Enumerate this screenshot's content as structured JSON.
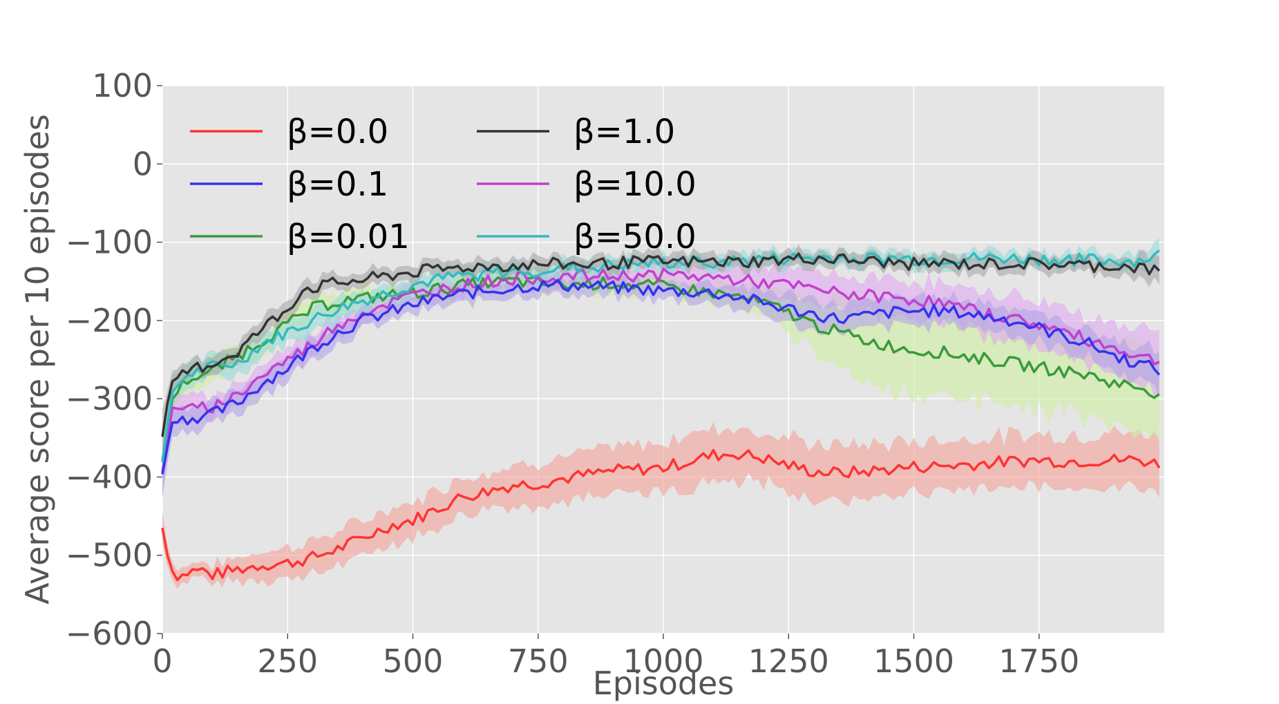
{
  "chart_data": {
    "type": "line",
    "title": "",
    "xlabel": "Episodes",
    "ylabel": "Average score per 10 episodes",
    "xlim": [
      0,
      2000
    ],
    "ylim": [
      -600,
      100
    ],
    "xticks": [
      0,
      250,
      500,
      750,
      1000,
      1250,
      1500,
      1750
    ],
    "yticks": [
      100,
      0,
      -100,
      -200,
      -300,
      -400,
      -500,
      -600
    ],
    "grid": true,
    "legend": {
      "placement": "top-left",
      "columns": 2
    },
    "series": [
      {
        "name": "β=0.0",
        "color": "#ff3333",
        "band_color": "#f4a29a",
        "x": [
          0,
          15,
          30,
          50,
          75,
          100,
          150,
          200,
          250,
          300,
          350,
          400,
          450,
          500,
          550,
          600,
          650,
          700,
          750,
          800,
          850,
          900,
          950,
          1000,
          1050,
          1100,
          1150,
          1200,
          1250,
          1300,
          1350,
          1400,
          1450,
          1500,
          1550,
          1600,
          1650,
          1700,
          1750,
          1800,
          1850,
          1900,
          1950,
          2000
        ],
        "y": [
          -465,
          -515,
          -530,
          -522,
          -518,
          -525,
          -518,
          -512,
          -510,
          -503,
          -492,
          -478,
          -463,
          -455,
          -440,
          -425,
          -418,
          -410,
          -408,
          -402,
          -397,
          -392,
          -390,
          -388,
          -380,
          -372,
          -370,
          -376,
          -385,
          -393,
          -395,
          -393,
          -390,
          -387,
          -386,
          -384,
          -382,
          -380,
          -378,
          -380,
          -379,
          -378,
          -378,
          -385
        ],
        "band": [
          20,
          12,
          10,
          10,
          10,
          12,
          15,
          18,
          20,
          22,
          22,
          22,
          22,
          22,
          25,
          25,
          25,
          25,
          28,
          28,
          28,
          30,
          30,
          32,
          35,
          35,
          35,
          32,
          35,
          35,
          35,
          35,
          33,
          33,
          33,
          33,
          33,
          33,
          33,
          33,
          33,
          35,
          35,
          35
        ]
      },
      {
        "name": "β=0.1",
        "color": "#3333ee",
        "band_color": "#b3a3e6",
        "x": [
          0,
          20,
          50,
          100,
          150,
          200,
          250,
          300,
          350,
          400,
          450,
          500,
          550,
          600,
          650,
          700,
          750,
          800,
          850,
          900,
          950,
          1000,
          1050,
          1100,
          1150,
          1200,
          1250,
          1300,
          1350,
          1400,
          1450,
          1500,
          1550,
          1600,
          1650,
          1700,
          1750,
          1800,
          1850,
          1900,
          1950,
          2000
        ],
        "y": [
          -395,
          -330,
          -325,
          -320,
          -305,
          -280,
          -260,
          -235,
          -215,
          -200,
          -190,
          -180,
          -172,
          -166,
          -162,
          -158,
          -155,
          -155,
          -156,
          -158,
          -160,
          -162,
          -163,
          -165,
          -170,
          -178,
          -185,
          -192,
          -198,
          -195,
          -190,
          -188,
          -188,
          -190,
          -195,
          -200,
          -210,
          -220,
          -230,
          -245,
          -255,
          -265
        ],
        "band": [
          30,
          20,
          15,
          15,
          15,
          15,
          15,
          15,
          15,
          12,
          12,
          12,
          12,
          12,
          12,
          12,
          12,
          12,
          12,
          12,
          12,
          12,
          12,
          14,
          15,
          16,
          18,
          18,
          18,
          18,
          18,
          18,
          18,
          18,
          18,
          18,
          18,
          18,
          20,
          20,
          22,
          25
        ]
      },
      {
        "name": "β=0.01",
        "color": "#3a9a3a",
        "band_color": "#cdeea0",
        "x": [
          0,
          20,
          50,
          100,
          150,
          200,
          250,
          300,
          350,
          400,
          450,
          500,
          550,
          600,
          650,
          700,
          750,
          800,
          850,
          900,
          950,
          1000,
          1050,
          1100,
          1150,
          1200,
          1250,
          1300,
          1350,
          1400,
          1450,
          1500,
          1550,
          1600,
          1650,
          1700,
          1750,
          1800,
          1850,
          1900,
          1950,
          2000
        ],
        "y": [
          -380,
          -300,
          -275,
          -265,
          -245,
          -225,
          -205,
          -185,
          -175,
          -172,
          -168,
          -165,
          -160,
          -155,
          -152,
          -150,
          -152,
          -155,
          -153,
          -152,
          -155,
          -157,
          -160,
          -165,
          -170,
          -178,
          -190,
          -205,
          -215,
          -225,
          -232,
          -238,
          -240,
          -245,
          -250,
          -255,
          -260,
          -265,
          -270,
          -280,
          -285,
          -295
        ],
        "band": [
          30,
          20,
          15,
          15,
          15,
          15,
          15,
          15,
          15,
          12,
          12,
          12,
          12,
          12,
          12,
          12,
          12,
          12,
          12,
          12,
          12,
          12,
          12,
          14,
          16,
          20,
          25,
          35,
          45,
          50,
          55,
          55,
          55,
          55,
          55,
          55,
          55,
          55,
          55,
          55,
          55,
          55
        ]
      },
      {
        "name": "β=1.0",
        "color": "#333333",
        "band_color": "#a6a6a6",
        "x": [
          0,
          15,
          30,
          60,
          100,
          150,
          200,
          250,
          280,
          300,
          350,
          400,
          450,
          500,
          550,
          600,
          650,
          700,
          750,
          800,
          850,
          900,
          950,
          1000,
          1050,
          1100,
          1150,
          1200,
          1250,
          1300,
          1350,
          1400,
          1450,
          1500,
          1550,
          1600,
          1650,
          1700,
          1750,
          1800,
          1850,
          1900,
          1950,
          2000
        ],
        "y": [
          -350,
          -282,
          -275,
          -262,
          -255,
          -240,
          -210,
          -185,
          -160,
          -158,
          -152,
          -148,
          -143,
          -138,
          -135,
          -132,
          -130,
          -130,
          -128,
          -128,
          -128,
          -127,
          -125,
          -125,
          -125,
          -125,
          -125,
          -124,
          -122,
          -120,
          -122,
          -124,
          -126,
          -128,
          -127,
          -128,
          -128,
          -127,
          -128,
          -128,
          -130,
          -130,
          -132,
          -140
        ],
        "band": [
          30,
          15,
          12,
          12,
          12,
          12,
          12,
          12,
          12,
          12,
          10,
          10,
          10,
          10,
          10,
          10,
          10,
          10,
          10,
          10,
          10,
          10,
          10,
          10,
          10,
          10,
          10,
          10,
          10,
          10,
          10,
          10,
          10,
          10,
          10,
          10,
          10,
          10,
          10,
          10,
          10,
          10,
          15,
          20
        ]
      },
      {
        "name": "β=10.0",
        "color": "#c040d0",
        "band_color": "#e0a8f0",
        "x": [
          0,
          20,
          50,
          100,
          150,
          200,
          250,
          300,
          350,
          400,
          450,
          500,
          550,
          600,
          650,
          700,
          750,
          800,
          850,
          900,
          950,
          1000,
          1050,
          1100,
          1150,
          1200,
          1250,
          1300,
          1350,
          1400,
          1450,
          1500,
          1550,
          1600,
          1650,
          1700,
          1750,
          1800,
          1850,
          1900,
          1950,
          2000
        ],
        "y": [
          -395,
          -310,
          -315,
          -310,
          -295,
          -270,
          -250,
          -230,
          -205,
          -190,
          -178,
          -168,
          -160,
          -155,
          -150,
          -147,
          -145,
          -144,
          -143,
          -143,
          -142,
          -142,
          -143,
          -145,
          -148,
          -152,
          -155,
          -160,
          -165,
          -168,
          -170,
          -173,
          -177,
          -185,
          -192,
          -198,
          -205,
          -215,
          -225,
          -235,
          -245,
          -255
        ],
        "band": [
          30,
          20,
          15,
          15,
          15,
          15,
          15,
          15,
          15,
          12,
          12,
          12,
          12,
          12,
          12,
          12,
          12,
          12,
          12,
          12,
          12,
          12,
          15,
          18,
          20,
          22,
          22,
          22,
          22,
          22,
          22,
          25,
          25,
          25,
          28,
          30,
          30,
          30,
          30,
          30,
          35,
          40
        ]
      },
      {
        "name": "β=50.0",
        "color": "#33bbbb",
        "band_color": "#9ad8d8",
        "x": [
          0,
          20,
          50,
          100,
          150,
          200,
          250,
          300,
          350,
          400,
          450,
          500,
          550,
          600,
          650,
          700,
          750,
          800,
          850,
          900,
          950,
          1000,
          1050,
          1100,
          1150,
          1200,
          1250,
          1300,
          1350,
          1400,
          1450,
          1500,
          1550,
          1600,
          1650,
          1700,
          1750,
          1800,
          1850,
          1900,
          1950,
          2000
        ],
        "y": [
          -380,
          -290,
          -270,
          -260,
          -255,
          -230,
          -215,
          -200,
          -185,
          -175,
          -165,
          -155,
          -148,
          -143,
          -140,
          -138,
          -136,
          -134,
          -132,
          -130,
          -128,
          -127,
          -126,
          -125,
          -124,
          -122,
          -121,
          -120,
          -120,
          -121,
          -121,
          -122,
          -122,
          -121,
          -121,
          -121,
          -122,
          -122,
          -123,
          -124,
          -124,
          -115
        ],
        "band": [
          30,
          20,
          15,
          15,
          15,
          15,
          15,
          15,
          15,
          12,
          12,
          12,
          12,
          12,
          12,
          12,
          12,
          12,
          10,
          10,
          10,
          10,
          10,
          10,
          10,
          10,
          10,
          10,
          10,
          10,
          10,
          10,
          10,
          10,
          10,
          10,
          10,
          10,
          10,
          10,
          12,
          15
        ]
      }
    ]
  }
}
